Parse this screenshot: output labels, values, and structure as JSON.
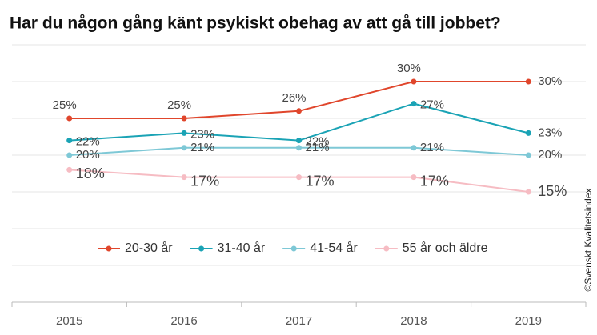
{
  "chart_data": {
    "type": "line",
    "title": "Har du någon gång känt psykiskt obehag av att gå till jobbet?",
    "categories": [
      "2015",
      "2016",
      "2017",
      "2018",
      "2019"
    ],
    "series": [
      {
        "name": "20-30 år",
        "color": "#e0462c",
        "values": [
          25,
          25,
          26,
          30,
          30
        ],
        "value_labels": [
          "25%",
          "25%",
          "26%",
          "30%",
          "30%"
        ]
      },
      {
        "name": "31-40 år",
        "color": "#1aa3b5",
        "values": [
          22,
          23,
          22,
          27,
          23
        ],
        "value_labels": [
          "22%",
          "23%",
          "22%",
          "27%",
          "23%"
        ]
      },
      {
        "name": "41-54 år",
        "color": "#7ec8d6",
        "values": [
          20,
          21,
          21,
          21,
          20
        ],
        "value_labels": [
          "20%",
          "21%",
          "21%",
          "21%",
          "20%"
        ]
      },
      {
        "name": "55 år och äldre",
        "color": "#f6bcc3",
        "values": [
          18,
          17,
          17,
          17,
          15
        ],
        "value_labels": [
          "18%",
          "17%",
          "17%",
          "17%",
          "15%"
        ]
      }
    ],
    "ylim": [
      0,
      35
    ],
    "yticks": [
      0,
      5,
      10,
      15,
      20,
      25,
      30,
      35
    ],
    "grid": true,
    "legend": "lower left",
    "source": "©Svenskt Kvalitetsindex"
  }
}
